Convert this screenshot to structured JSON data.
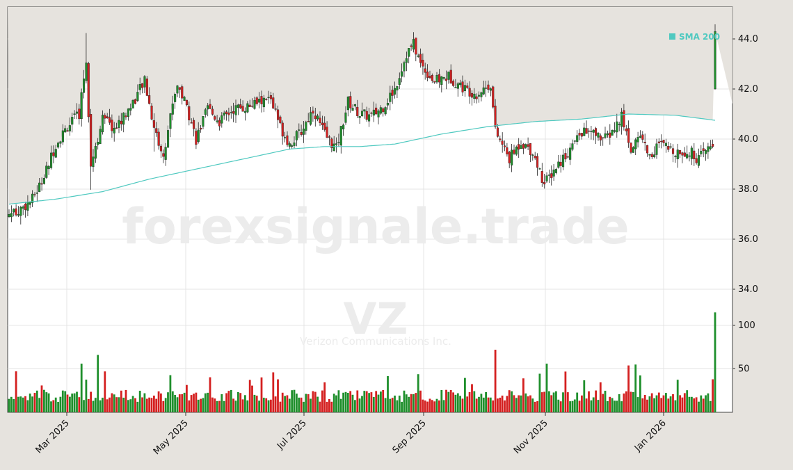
{
  "colors": {
    "background": "#e6e3de",
    "up": "#1f8f2c",
    "down": "#d42020",
    "sma": "#4fc9c0",
    "grid": "#e4e4e4",
    "watermark": "#ececec"
  },
  "watermark": {
    "site": "forexsignale.trade",
    "ticker": "VZ",
    "company": "Verizon Communications Inc."
  },
  "chart_data": {
    "type": "candlestick",
    "title": "",
    "legend": {
      "label": "SMA 200",
      "placement": "top-right"
    },
    "x_ticks": [
      "Mar 2025",
      "May 2025",
      "Jul 2025",
      "Sep 2025",
      "Nov 2025",
      "Jan 2026"
    ],
    "price_axis": {
      "ticks": [
        "34.0",
        "36.0",
        "38.0",
        "40.0",
        "42.0",
        "44.0"
      ],
      "ylim": [
        33.2,
        45.2
      ]
    },
    "volume_axis": {
      "ticks": [
        "50",
        "100"
      ],
      "ylim": [
        0,
        120
      ]
    },
    "grid": true,
    "price_keypoints": [
      [
        0,
        37.0
      ],
      [
        5,
        37.2
      ],
      [
        10,
        37.6
      ],
      [
        15,
        38.5
      ],
      [
        20,
        39.8
      ],
      [
        25,
        40.5
      ],
      [
        30,
        41.0
      ],
      [
        33,
        43.2
      ],
      [
        35,
        39.0
      ],
      [
        40,
        40.8
      ],
      [
        45,
        40.4
      ],
      [
        50,
        41.0
      ],
      [
        55,
        41.8
      ],
      [
        58,
        42.3
      ],
      [
        62,
        40.5
      ],
      [
        66,
        39.2
      ],
      [
        70,
        41.5
      ],
      [
        72,
        42.2
      ],
      [
        76,
        41.3
      ],
      [
        80,
        40.0
      ],
      [
        85,
        41.2
      ],
      [
        90,
        40.7
      ],
      [
        96,
        41.2
      ],
      [
        102,
        41.3
      ],
      [
        108,
        41.5
      ],
      [
        112,
        41.6
      ],
      [
        116,
        40.5
      ],
      [
        120,
        39.8
      ],
      [
        125,
        40.3
      ],
      [
        130,
        41.2
      ],
      [
        135,
        40.2
      ],
      [
        140,
        39.6
      ],
      [
        145,
        41.5
      ],
      [
        150,
        41.0
      ],
      [
        155,
        40.9
      ],
      [
        160,
        41.3
      ],
      [
        165,
        42.0
      ],
      [
        170,
        43.4
      ],
      [
        173,
        43.8
      ],
      [
        176,
        43.0
      ],
      [
        182,
        42.3
      ],
      [
        188,
        42.5
      ],
      [
        195,
        42.0
      ],
      [
        200,
        41.8
      ],
      [
        206,
        42.2
      ],
      [
        208,
        40.3
      ],
      [
        214,
        39.2
      ],
      [
        219,
        39.9
      ],
      [
        224,
        39.5
      ],
      [
        229,
        38.2
      ],
      [
        234,
        38.9
      ],
      [
        240,
        39.6
      ],
      [
        245,
        40.3
      ],
      [
        250,
        40.2
      ],
      [
        255,
        40.0
      ],
      [
        259,
        40.4
      ],
      [
        262,
        40.9
      ],
      [
        266,
        39.6
      ],
      [
        270,
        40.2
      ],
      [
        274,
        39.3
      ],
      [
        278,
        39.8
      ],
      [
        282,
        39.6
      ],
      [
        287,
        39.5
      ],
      [
        291,
        39.5
      ],
      [
        295,
        39.2
      ],
      [
        299,
        39.6
      ],
      [
        301,
        39.8
      ],
      [
        302,
        44.3
      ]
    ],
    "sma_keypoints": [
      [
        0,
        37.4
      ],
      [
        20,
        37.6
      ],
      [
        40,
        37.9
      ],
      [
        60,
        38.4
      ],
      [
        80,
        38.8
      ],
      [
        100,
        39.2
      ],
      [
        120,
        39.6
      ],
      [
        135,
        39.7
      ],
      [
        150,
        39.7
      ],
      [
        165,
        39.8
      ],
      [
        185,
        40.2
      ],
      [
        205,
        40.5
      ],
      [
        225,
        40.7
      ],
      [
        245,
        40.8
      ],
      [
        265,
        41.0
      ],
      [
        285,
        40.95
      ],
      [
        302,
        40.75
      ]
    ]
  }
}
